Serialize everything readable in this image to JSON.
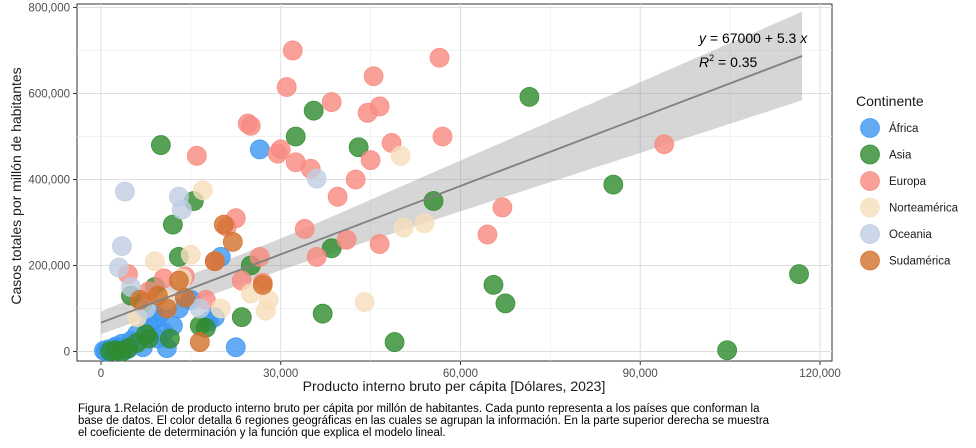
{
  "chart_data": {
    "type": "scatter",
    "title": "",
    "xlabel": "Producto interno bruto per cápita [Dólares, 2023]",
    "ylabel": "Casos totales por millón de habitantes",
    "xlim": [
      -4000,
      122000
    ],
    "ylim": [
      -22000,
      808000
    ],
    "x_ticks": [
      0,
      30000,
      60000,
      90000,
      120000
    ],
    "x_tick_labels": [
      "0",
      "30,000",
      "60,000",
      "90,000",
      "120,000"
    ],
    "y_ticks": [
      0,
      200000,
      400000,
      600000,
      800000
    ],
    "y_tick_labels": [
      "0",
      "200,000",
      "400,000",
      "600,000",
      "800,000"
    ],
    "grid": true,
    "legend": {
      "title": "Continente",
      "position": "right"
    },
    "annotation": {
      "equation_prefix": "y",
      "equation_body": " = 67000 + 5.3 ",
      "equation_var": "x",
      "r2_prefix": "R",
      "r2_sup": "2",
      "r2_value": " = 0.35"
    },
    "regression": {
      "intercept": 67000,
      "slope": 5.3,
      "x_range": [
        0,
        117000
      ],
      "band_x": [
        0,
        117000
      ],
      "band_lower": [
        44000,
        578000
      ],
      "band_upper": [
        97000,
        784000
      ]
    },
    "series": [
      {
        "name": "África",
        "color": "#3c97f2",
        "points": [
          [
            500,
            2000
          ],
          [
            800,
            500
          ],
          [
            1200,
            5000
          ],
          [
            1500,
            1000
          ],
          [
            1800,
            3000
          ],
          [
            2200,
            8000
          ],
          [
            2500,
            12000
          ],
          [
            3000,
            1500
          ],
          [
            3500,
            18000
          ],
          [
            4000,
            3000
          ],
          [
            4500,
            6000
          ],
          [
            5000,
            25000
          ],
          [
            6000,
            40000
          ],
          [
            7000,
            10000
          ],
          [
            8000,
            60000
          ],
          [
            9000,
            75000
          ],
          [
            9500,
            30000
          ],
          [
            10000,
            90000
          ],
          [
            10500,
            45000
          ],
          [
            11000,
            8000
          ],
          [
            12000,
            60000
          ],
          [
            13000,
            100000
          ],
          [
            15000,
            120000
          ],
          [
            18000,
            70000
          ],
          [
            19000,
            80000
          ],
          [
            20000,
            220000
          ],
          [
            22500,
            10000
          ],
          [
            26500,
            470000
          ]
        ]
      },
      {
        "name": "Asia",
        "color": "#2e8b2e",
        "points": [
          [
            1500,
            1000
          ],
          [
            2500,
            3000
          ],
          [
            3500,
            0
          ],
          [
            4500,
            8000
          ],
          [
            5000,
            130000
          ],
          [
            6000,
            20000
          ],
          [
            7000,
            112000
          ],
          [
            7500,
            40000
          ],
          [
            8000,
            30000
          ],
          [
            9000,
            150000
          ],
          [
            10000,
            480000
          ],
          [
            11500,
            30000
          ],
          [
            12000,
            295000
          ],
          [
            13000,
            220000
          ],
          [
            15500,
            350000
          ],
          [
            16500,
            60000
          ],
          [
            17500,
            55000
          ],
          [
            23500,
            80000
          ],
          [
            25000,
            200000
          ],
          [
            32500,
            500000
          ],
          [
            35500,
            560000
          ],
          [
            37000,
            88000
          ],
          [
            38500,
            240000
          ],
          [
            43000,
            475000
          ],
          [
            49000,
            22000
          ],
          [
            55500,
            350000
          ],
          [
            65500,
            155000
          ],
          [
            67500,
            112000
          ],
          [
            71500,
            592000
          ],
          [
            85500,
            388000
          ],
          [
            104500,
            3000
          ],
          [
            116500,
            180000
          ]
        ]
      },
      {
        "name": "Europa",
        "color": "#f88a80",
        "points": [
          [
            4500,
            180000
          ],
          [
            8000,
            140000
          ],
          [
            10500,
            170000
          ],
          [
            14000,
            175000
          ],
          [
            16000,
            455000
          ],
          [
            17500,
            120000
          ],
          [
            19000,
            210000
          ],
          [
            21000,
            290000
          ],
          [
            22500,
            310000
          ],
          [
            23500,
            165000
          ],
          [
            24500,
            530000
          ],
          [
            25000,
            525000
          ],
          [
            26500,
            220000
          ],
          [
            27000,
            160000
          ],
          [
            29500,
            460000
          ],
          [
            30000,
            470000
          ],
          [
            31000,
            615000
          ],
          [
            32000,
            700000
          ],
          [
            32500,
            440000
          ],
          [
            34000,
            285000
          ],
          [
            35000,
            425000
          ],
          [
            36000,
            220000
          ],
          [
            38500,
            580000
          ],
          [
            39500,
            360000
          ],
          [
            41000,
            260000
          ],
          [
            42500,
            400000
          ],
          [
            44500,
            555000
          ],
          [
            45000,
            445000
          ],
          [
            45500,
            640000
          ],
          [
            46500,
            570000
          ],
          [
            46500,
            250000
          ],
          [
            48500,
            485000
          ],
          [
            56500,
            683000
          ],
          [
            57000,
            500000
          ],
          [
            64500,
            272000
          ],
          [
            67000,
            335000
          ],
          [
            94000,
            482000
          ]
        ]
      },
      {
        "name": "Norteamérica",
        "color": "#f6dfbb",
        "points": [
          [
            6000,
            80000
          ],
          [
            9000,
            210000
          ],
          [
            11000,
            120000
          ],
          [
            13500,
            170000
          ],
          [
            15000,
            225000
          ],
          [
            17000,
            375000
          ],
          [
            20000,
            100000
          ],
          [
            25000,
            135000
          ],
          [
            27500,
            95000
          ],
          [
            28000,
            120000
          ],
          [
            44000,
            115000
          ],
          [
            50000,
            455000
          ],
          [
            50500,
            288000
          ],
          [
            54000,
            298000
          ]
        ]
      },
      {
        "name": "Oceania",
        "color": "#bfcde2",
        "points": [
          [
            3000,
            195000
          ],
          [
            3500,
            245000
          ],
          [
            4000,
            372000
          ],
          [
            5000,
            150000
          ],
          [
            7500,
            100000
          ],
          [
            13000,
            360000
          ],
          [
            13500,
            330000
          ],
          [
            16500,
            100000
          ],
          [
            36000,
            402000
          ]
        ]
      },
      {
        "name": "Sudamérica",
        "color": "#d2702c",
        "points": [
          [
            6500,
            120000
          ],
          [
            9500,
            130000
          ],
          [
            11000,
            100000
          ],
          [
            13000,
            165000
          ],
          [
            14000,
            125000
          ],
          [
            16500,
            22000
          ],
          [
            19000,
            210000
          ],
          [
            20500,
            295000
          ],
          [
            22000,
            255000
          ],
          [
            27000,
            155000
          ]
        ]
      }
    ]
  },
  "caption": {
    "lines": [
      "Figura 1.Relación de producto interno bruto per cápita por millón de habitantes. Cada punto representa a los países que conforman la",
      "base de datos. El color detalla 6 regiones geográficas en las cuales se agrupan la información. En la parte superior derecha se muestra",
      "el coeficiente de determinación y la función que explica el modelo lineal."
    ]
  }
}
